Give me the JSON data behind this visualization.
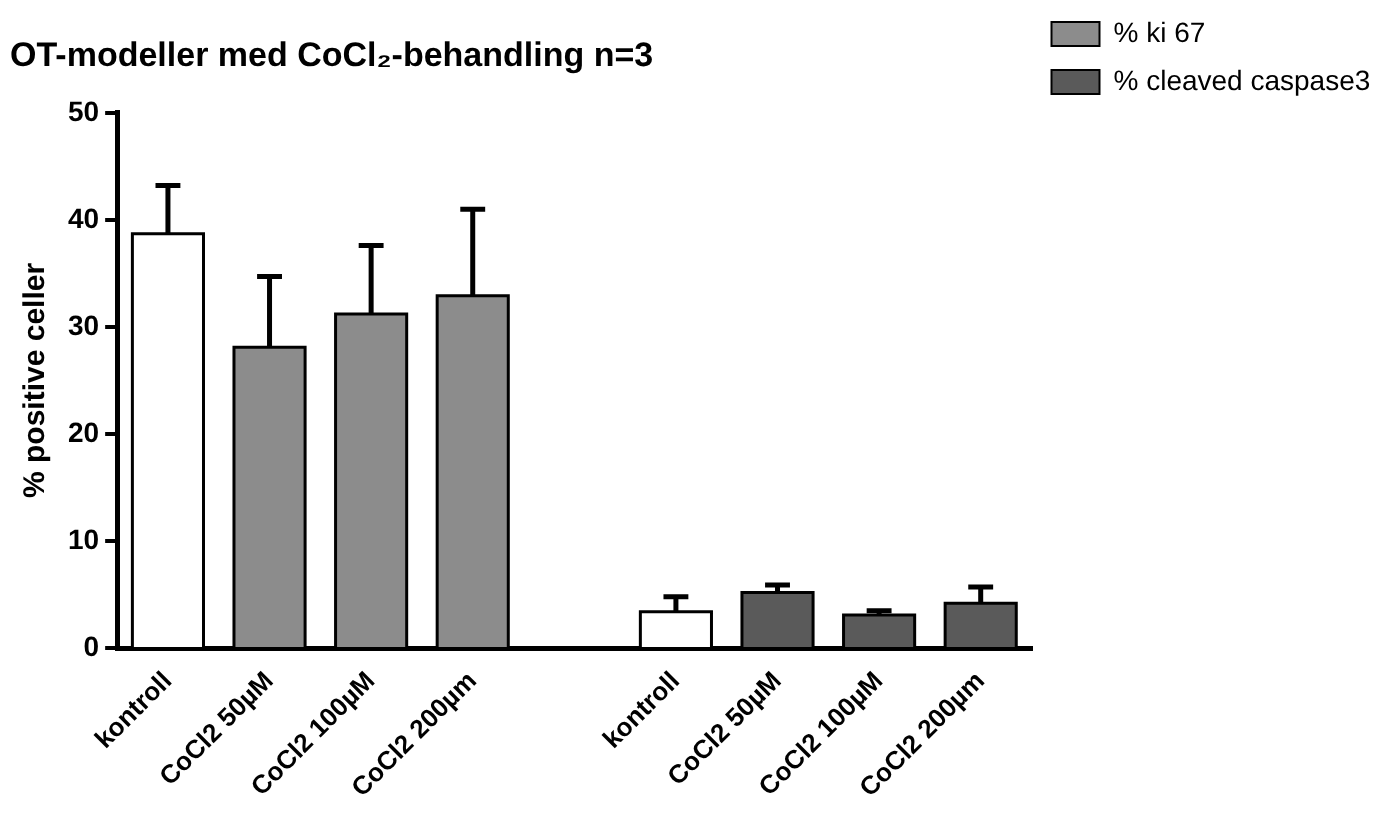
{
  "chart_data": {
    "type": "bar",
    "title": "OT-modeller med CoCl₂-behandling n=3",
    "ylabel": "% positive celler",
    "categories": [
      "kontroll",
      "CoCl2 50µM",
      "CoCl2 100µM",
      "CoCl2 200µm",
      null,
      "kontroll",
      "CoCl2 50µM",
      "CoCl2 100µM",
      "CoCl2 200µm"
    ],
    "series": [
      {
        "name": "% ki 67",
        "color": "#8c8c8c",
        "colors": [
          "#ffffff",
          "#8c8c8c",
          "#8c8c8c",
          "#8c8c8c",
          "#8c8c8c",
          "#8c8c8c",
          "#8c8c8c",
          "#8c8c8c",
          "#8c8c8c"
        ],
        "values": [
          38.7,
          28.1,
          31.2,
          32.9,
          null,
          null,
          null,
          null,
          null
        ],
        "errors": [
          [
            38.7,
            43.2
          ],
          [
            28.1,
            34.7
          ],
          [
            31.2,
            37.6
          ],
          [
            32.9,
            41.0
          ],
          null,
          null,
          null,
          null,
          null
        ]
      },
      {
        "name": "% cleaved caspase3",
        "color": "#5a5a5a",
        "colors": [
          "#5a5a5a",
          "#5a5a5a",
          "#5a5a5a",
          "#5a5a5a",
          "#5a5a5a",
          "#ffffff",
          "#5a5a5a",
          "#5a5a5a",
          "#5a5a5a"
        ],
        "values": [
          null,
          null,
          null,
          null,
          null,
          3.4,
          5.2,
          3.1,
          4.2
        ],
        "errors": [
          null,
          null,
          null,
          null,
          null,
          [
            3.4,
            4.8
          ],
          [
            5.2,
            5.9
          ],
          [
            3.1,
            3.5
          ],
          [
            4.2,
            5.7
          ]
        ]
      }
    ],
    "ylim": [
      0,
      50
    ],
    "yticks": [
      0,
      10,
      20,
      30,
      40,
      50
    ],
    "grid": false,
    "legend": "top right"
  }
}
